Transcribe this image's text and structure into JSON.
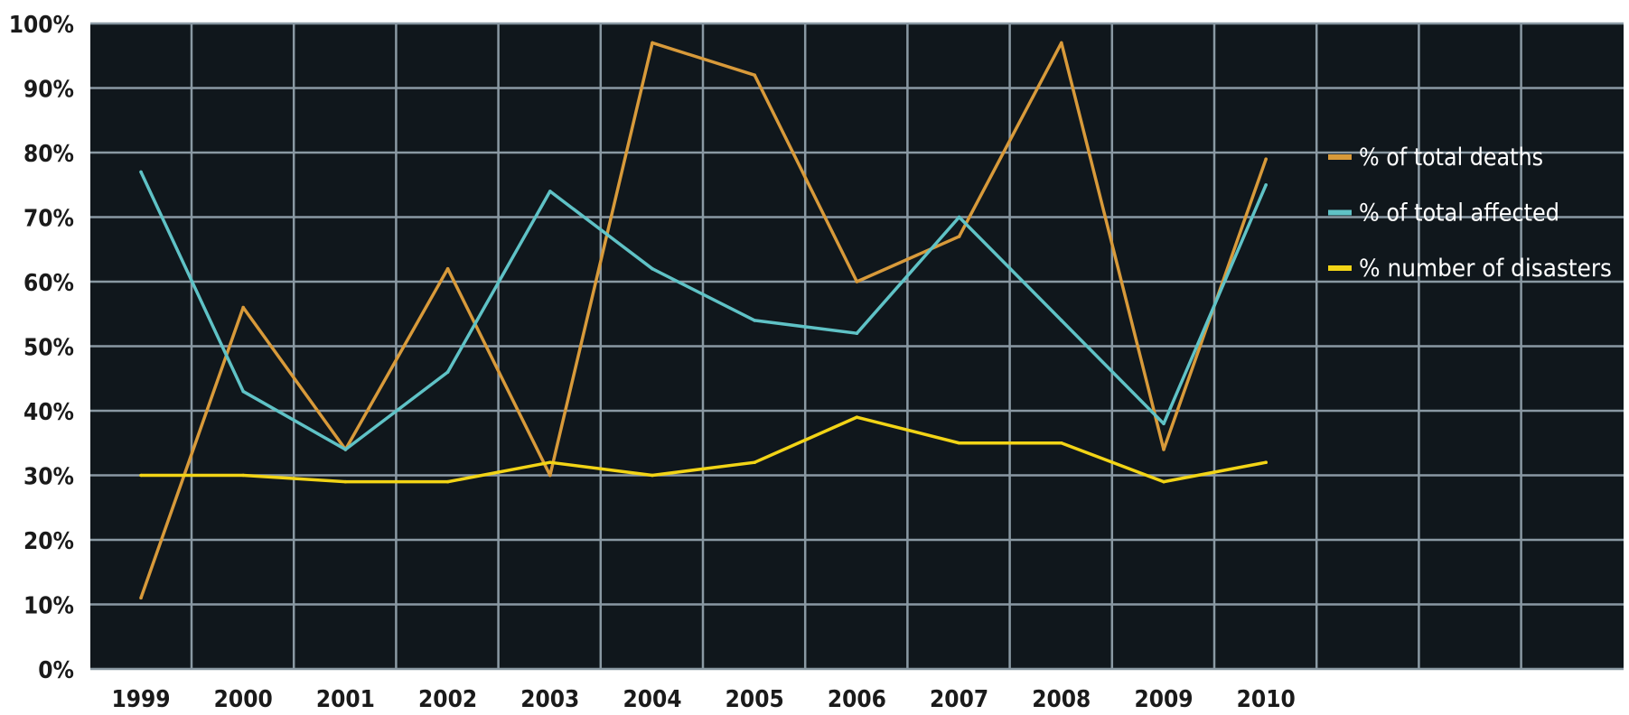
{
  "chart_data": {
    "type": "line",
    "x": [
      "1999",
      "2000",
      "2001",
      "2002",
      "2003",
      "2004",
      "2005",
      "2006",
      "2007",
      "2008",
      "2009",
      "2010"
    ],
    "yticks": [
      "0%",
      "10%",
      "20%",
      "30%",
      "40%",
      "50%",
      "60%",
      "70%",
      "80%",
      "90%",
      "100%"
    ],
    "ylim": [
      0,
      100
    ],
    "grid": true,
    "legend_position": "right",
    "background": "#10171c",
    "grid_color": "#8a99a3",
    "series": [
      {
        "name": "% of total deaths",
        "color": "#d89a3a",
        "values": [
          11,
          56,
          34,
          62,
          30,
          97,
          92,
          60,
          67,
          97,
          34,
          79
        ]
      },
      {
        "name": "% of total affected",
        "color": "#5fc2c6",
        "values": [
          77,
          43,
          34,
          46,
          74,
          62,
          54,
          52,
          70,
          54,
          38,
          75
        ]
      },
      {
        "name": "% number of disasters",
        "color": "#f2d416",
        "values": [
          30,
          30,
          29,
          29,
          32,
          30,
          32,
          39,
          35,
          35,
          29,
          32
        ]
      }
    ]
  }
}
